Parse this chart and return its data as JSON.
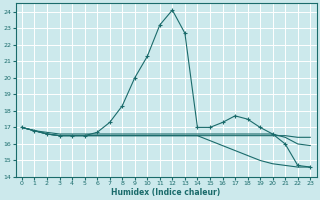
{
  "xlabel": "Humidex (Indice chaleur)",
  "xlim": [
    -0.5,
    23.5
  ],
  "ylim": [
    14,
    24.5
  ],
  "yticks": [
    14,
    15,
    16,
    17,
    18,
    19,
    20,
    21,
    22,
    23,
    24
  ],
  "xticks": [
    0,
    1,
    2,
    3,
    4,
    5,
    6,
    7,
    8,
    9,
    10,
    11,
    12,
    13,
    14,
    15,
    16,
    17,
    18,
    19,
    20,
    21,
    22,
    23
  ],
  "bg_color": "#cce9ec",
  "grid_color": "#ffffff",
  "line_color": "#1a6b6b",
  "lines": [
    {
      "x": [
        0,
        1,
        2,
        3,
        4,
        5,
        6,
        7,
        8,
        9,
        10,
        11,
        12,
        13,
        14,
        15,
        16,
        17,
        18,
        19,
        20,
        21,
        22,
        23
      ],
      "y": [
        17.0,
        16.8,
        16.6,
        16.5,
        16.5,
        16.5,
        16.7,
        17.3,
        18.3,
        20.0,
        21.3,
        23.2,
        24.1,
        22.7,
        17.0,
        17.0,
        17.3,
        17.7,
        17.5,
        17.0,
        16.6,
        16.0,
        14.7,
        14.6
      ],
      "marker": "+"
    },
    {
      "x": [
        0,
        1,
        2,
        3,
        4,
        5,
        6,
        7,
        8,
        9,
        10,
        11,
        12,
        13,
        14,
        15,
        16,
        17,
        18,
        19,
        20,
        21,
        22,
        23
      ],
      "y": [
        17.0,
        16.8,
        16.6,
        16.5,
        16.5,
        16.5,
        16.5,
        16.5,
        16.5,
        16.5,
        16.5,
        16.5,
        16.5,
        16.5,
        16.5,
        16.2,
        15.9,
        15.6,
        15.3,
        15.0,
        14.8,
        14.7,
        14.6,
        14.6
      ],
      "marker": null
    },
    {
      "x": [
        0,
        1,
        2,
        3,
        4,
        5,
        6,
        7,
        8,
        9,
        10,
        11,
        12,
        13,
        14,
        15,
        16,
        17,
        18,
        19,
        20,
        21,
        22,
        23
      ],
      "y": [
        17.0,
        16.8,
        16.6,
        16.5,
        16.5,
        16.5,
        16.5,
        16.5,
        16.5,
        16.5,
        16.5,
        16.5,
        16.5,
        16.5,
        16.5,
        16.5,
        16.5,
        16.5,
        16.5,
        16.5,
        16.5,
        16.5,
        16.4,
        16.4
      ],
      "marker": null
    },
    {
      "x": [
        0,
        1,
        2,
        3,
        4,
        5,
        6,
        7,
        8,
        9,
        10,
        11,
        12,
        13,
        14,
        15,
        16,
        17,
        18,
        19,
        20,
        21,
        22,
        23
      ],
      "y": [
        17.0,
        16.8,
        16.7,
        16.6,
        16.6,
        16.6,
        16.6,
        16.6,
        16.6,
        16.6,
        16.6,
        16.6,
        16.6,
        16.6,
        16.6,
        16.6,
        16.6,
        16.6,
        16.6,
        16.6,
        16.6,
        16.4,
        16.0,
        15.9
      ],
      "marker": null
    }
  ]
}
